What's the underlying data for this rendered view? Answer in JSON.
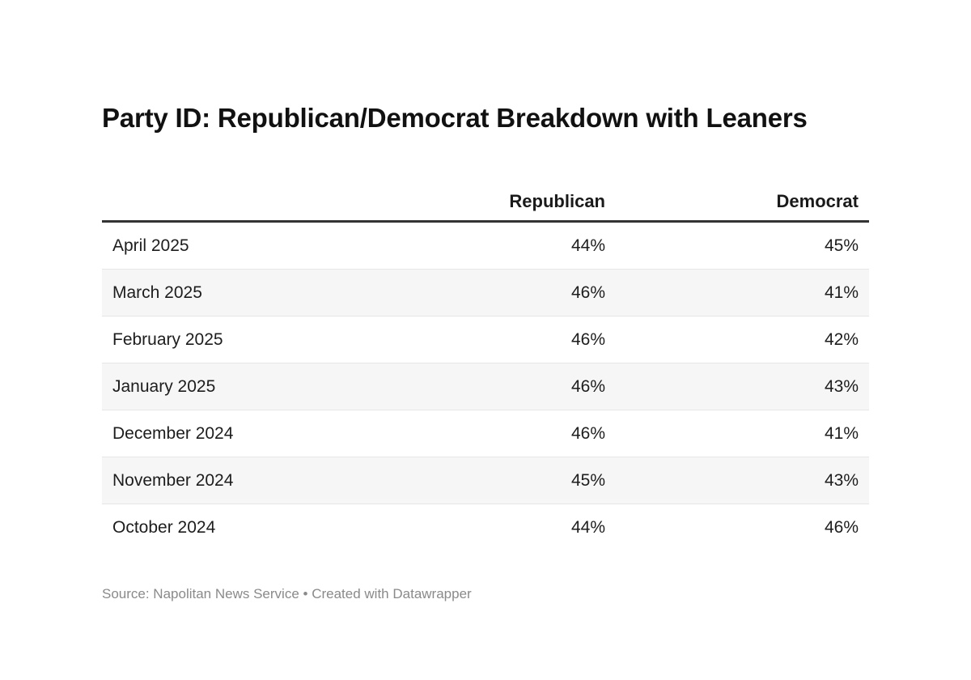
{
  "title": "Party ID: Republican/Democrat Breakdown with Leaners",
  "footer": {
    "source": "Source: Napolitan News Service",
    "separator": "•",
    "credit": "Created with Datawrapper"
  },
  "chart_data": {
    "type": "table",
    "title": "Party ID: Republican/Democrat Breakdown with Leaners",
    "columns": [
      "",
      "Republican",
      "Democrat"
    ],
    "rows": [
      {
        "label": "April 2025",
        "republican": "44%",
        "democrat": "45%"
      },
      {
        "label": "March 2025",
        "republican": "46%",
        "democrat": "41%"
      },
      {
        "label": "February 2025",
        "republican": "46%",
        "democrat": "42%"
      },
      {
        "label": "January 2025",
        "republican": "46%",
        "democrat": "43%"
      },
      {
        "label": "December 2024",
        "republican": "46%",
        "democrat": "41%"
      },
      {
        "label": "November 2024",
        "republican": "45%",
        "democrat": "43%"
      },
      {
        "label": "October 2024",
        "republican": "44%",
        "democrat": "46%"
      }
    ]
  }
}
